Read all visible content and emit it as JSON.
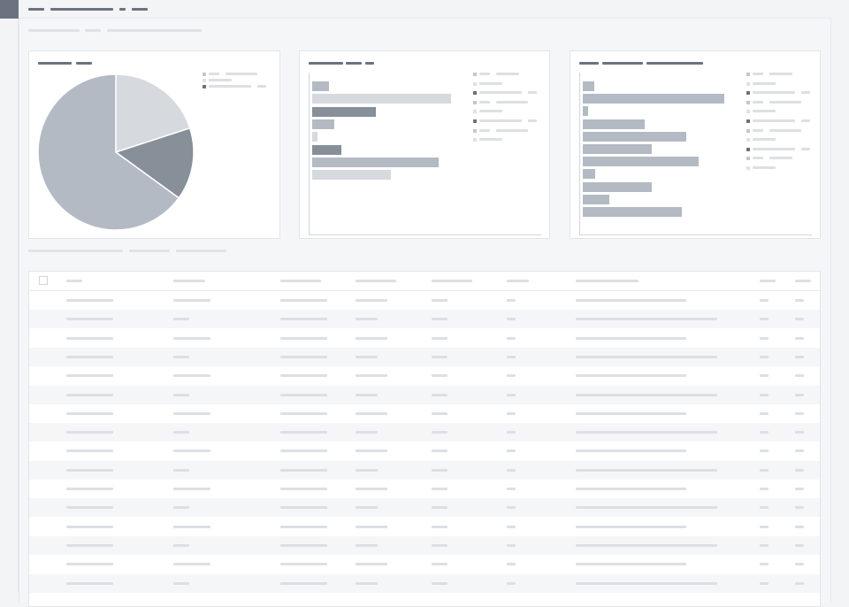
{
  "header": {
    "breadcrumb": [
      "",
      "",
      "",
      ""
    ],
    "subtitle_line": [
      "",
      "",
      ""
    ]
  },
  "colors": {
    "corner": "#6b7280",
    "pie_light": "#d6d9de",
    "pie_dark": "#878f99",
    "pie_mid": "#b4bac3",
    "bar_default": "#b4bac3",
    "bar_light": "#d6d9de",
    "bar_dark": "#878f99",
    "placeholder_text": "#dcdfe3",
    "placeholder_title": "#6b7280"
  },
  "pie_card": {
    "title": "",
    "legend": [
      {
        "label": "",
        "color": "#c4c8ce"
      },
      {
        "label": "",
        "color": "#e0e2e6"
      },
      {
        "label": "",
        "color": "#6b7280"
      }
    ]
  },
  "chart_data": [
    {
      "type": "pie",
      "title": "",
      "series": [
        {
          "value": 20,
          "color": "#d6d9de"
        },
        {
          "value": 15,
          "color": "#878f99"
        },
        {
          "value": 65,
          "color": "#b4bac3"
        }
      ]
    },
    {
      "type": "bar",
      "orientation": "horizontal",
      "title": "",
      "values": [
        12,
        100,
        46,
        16,
        4,
        21,
        91,
        57
      ],
      "colors": [
        "#b4bac3",
        "#d6d9de",
        "#878f99",
        "#b4bac3",
        "#d6d9de",
        "#878f99",
        "#b4bac3",
        "#d6d9de"
      ],
      "legend": [
        {
          "label": "",
          "color": "#c4c8ce"
        },
        {
          "label": "",
          "color": "#e0e2e6"
        },
        {
          "label": "",
          "color": "#6b7280"
        },
        {
          "label": "",
          "color": "#c4c8ce"
        },
        {
          "label": "",
          "color": "#e0e2e6"
        },
        {
          "label": "",
          "color": "#6b7280"
        },
        {
          "label": "",
          "color": "#c4c8ce"
        },
        {
          "label": "",
          "color": "#e0e2e6"
        }
      ]
    },
    {
      "type": "bar",
      "orientation": "horizontal",
      "title": "",
      "values": [
        8,
        100,
        4,
        44,
        73,
        49,
        82,
        9,
        49,
        19,
        70
      ],
      "colors": [
        "#b4bac3",
        "#b4bac3",
        "#b4bac3",
        "#b4bac3",
        "#b4bac3",
        "#b4bac3",
        "#b4bac3",
        "#b4bac3",
        "#b4bac3",
        "#b4bac3",
        "#b4bac3"
      ],
      "legend": [
        {
          "label": "",
          "color": "#c4c8ce"
        },
        {
          "label": "",
          "color": "#e0e2e6"
        },
        {
          "label": "",
          "color": "#6b7280"
        },
        {
          "label": "",
          "color": "#c4c8ce"
        },
        {
          "label": "",
          "color": "#e0e2e6"
        },
        {
          "label": "",
          "color": "#6b7280"
        },
        {
          "label": "",
          "color": "#c4c8ce"
        },
        {
          "label": "",
          "color": "#e0e2e6"
        },
        {
          "label": "",
          "color": "#6b7280"
        },
        {
          "label": "",
          "color": "#c4c8ce"
        },
        {
          "label": "",
          "color": "#e0e2e6"
        }
      ]
    }
  ],
  "table": {
    "columns": [
      "",
      "",
      "",
      "",
      "",
      "",
      "",
      "",
      ""
    ],
    "rows": [
      [
        "",
        "",
        "",
        "",
        "",
        "",
        "",
        "",
        ""
      ],
      [
        "",
        "",
        "",
        "",
        "",
        "",
        "",
        "",
        ""
      ],
      [
        "",
        "",
        "",
        "",
        "",
        "",
        "",
        "",
        ""
      ],
      [
        "",
        "",
        "",
        "",
        "",
        "",
        "",
        "",
        ""
      ],
      [
        "",
        "",
        "",
        "",
        "",
        "",
        "",
        "",
        ""
      ],
      [
        "",
        "",
        "",
        "",
        "",
        "",
        "",
        "",
        ""
      ],
      [
        "",
        "",
        "",
        "",
        "",
        "",
        "",
        "",
        ""
      ],
      [
        "",
        "",
        "",
        "",
        "",
        "",
        "",
        "",
        ""
      ],
      [
        "",
        "",
        "",
        "",
        "",
        "",
        "",
        "",
        ""
      ],
      [
        "",
        "",
        "",
        "",
        "",
        "",
        "",
        "",
        ""
      ],
      [
        "",
        "",
        "",
        "",
        "",
        "",
        "",
        "",
        ""
      ],
      [
        "",
        "",
        "",
        "",
        "",
        "",
        "",
        "",
        ""
      ],
      [
        "",
        "",
        "",
        "",
        "",
        "",
        "",
        "",
        ""
      ],
      [
        "",
        "",
        "",
        "",
        "",
        "",
        "",
        "",
        ""
      ],
      [
        "",
        "",
        "",
        "",
        "",
        "",
        "",
        "",
        ""
      ],
      [
        "",
        "",
        "",
        "",
        "",
        "",
        "",
        "",
        ""
      ]
    ]
  }
}
